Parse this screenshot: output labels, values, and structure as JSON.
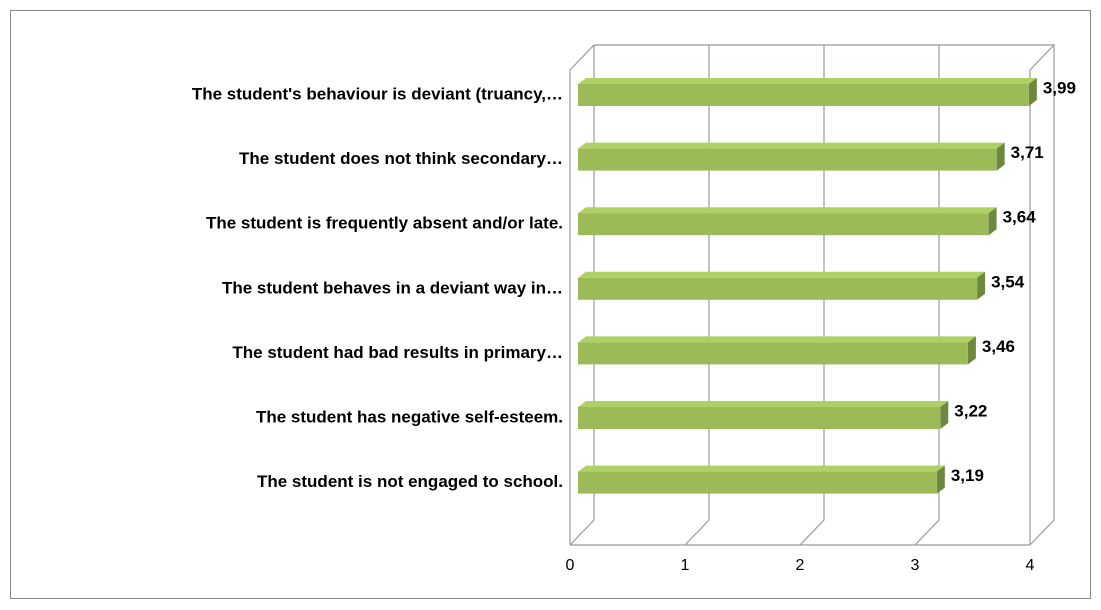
{
  "chart_data": {
    "type": "bar3d",
    "categories": [
      "The student's behaviour is deviant (truancy,…",
      "The student does not think secondary…",
      "The student is frequently absent and/or late.",
      "The student behaves in a deviant way in…",
      "The student had bad results in primary…",
      "The student has negative self-esteem.",
      "The student is not engaged to school."
    ],
    "values": [
      3.99,
      3.71,
      3.64,
      3.54,
      3.46,
      3.22,
      3.19
    ],
    "value_labels": [
      "3,99",
      "3,71",
      "3,64",
      "3,54",
      "3,46",
      "3,22",
      "3,19"
    ],
    "color": "#9bbb59",
    "xlim": [
      0,
      4
    ],
    "xticks": [
      0,
      1,
      2,
      3,
      4
    ],
    "grid": true
  }
}
